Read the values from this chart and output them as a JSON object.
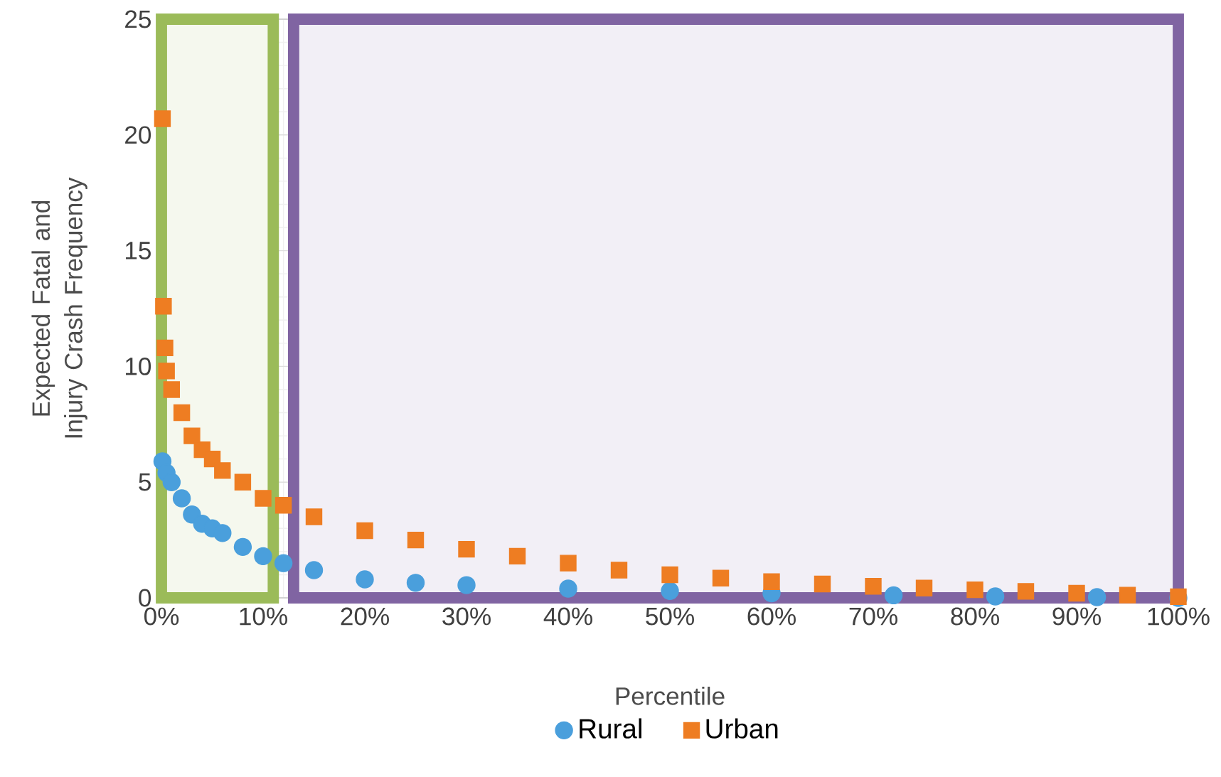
{
  "chart_data": {
    "type": "scatter",
    "xlabel": "Percentile",
    "ylabel": "Expected Fatal and Injury Crash Frequency",
    "xlim": [
      0,
      100
    ],
    "ylim": [
      0,
      25
    ],
    "xticks": [
      {
        "value": 0,
        "label": "0%"
      },
      {
        "value": 10,
        "label": "10%"
      },
      {
        "value": 20,
        "label": "20%"
      },
      {
        "value": 30,
        "label": "30%"
      },
      {
        "value": 40,
        "label": "40%"
      },
      {
        "value": 50,
        "label": "50%"
      },
      {
        "value": 60,
        "label": "60%"
      },
      {
        "value": 70,
        "label": "70%"
      },
      {
        "value": 80,
        "label": "80%"
      },
      {
        "value": 90,
        "label": "90%"
      },
      {
        "value": 100,
        "label": "100%"
      }
    ],
    "yticks": [
      0,
      5,
      10,
      15,
      20,
      25
    ],
    "grid": true,
    "legend": "bottom",
    "series": [
      {
        "name": "Rural",
        "color": "#4a9fdc",
        "marker": "circle",
        "x": [
          0.1,
          0.5,
          1,
          2,
          3,
          4,
          5,
          6,
          8,
          10,
          12,
          15,
          20,
          25,
          30,
          40,
          50,
          60,
          72,
          82,
          92,
          100
        ],
        "values": [
          5.9,
          5.4,
          5.0,
          4.3,
          3.6,
          3.2,
          3.0,
          2.8,
          2.2,
          1.8,
          1.5,
          1.2,
          0.8,
          0.65,
          0.55,
          0.4,
          0.3,
          0.2,
          0.11,
          0.06,
          0.03,
          0.0
        ]
      },
      {
        "name": "Urban",
        "color": "#ee7d22",
        "marker": "square",
        "x": [
          0.1,
          0.2,
          0.35,
          0.5,
          1,
          2,
          3,
          4,
          5,
          6,
          8,
          10,
          12,
          15,
          20,
          25,
          30,
          35,
          40,
          45,
          50,
          55,
          60,
          65,
          70,
          75,
          80,
          85,
          90,
          95,
          100
        ],
        "values": [
          20.7,
          12.6,
          10.8,
          9.8,
          9.0,
          8.0,
          7.0,
          6.4,
          6.0,
          5.5,
          5.0,
          4.3,
          4.0,
          3.5,
          2.9,
          2.5,
          2.1,
          1.8,
          1.5,
          1.2,
          1.0,
          0.85,
          0.7,
          0.6,
          0.5,
          0.42,
          0.35,
          0.28,
          0.2,
          0.12,
          0.05
        ]
      }
    ],
    "bands": [
      {
        "axis": "x",
        "from": 0,
        "to": 11,
        "color": "#9bbb59"
      },
      {
        "axis": "x",
        "from": 13,
        "to": 100,
        "color": "#8064a2"
      }
    ]
  }
}
